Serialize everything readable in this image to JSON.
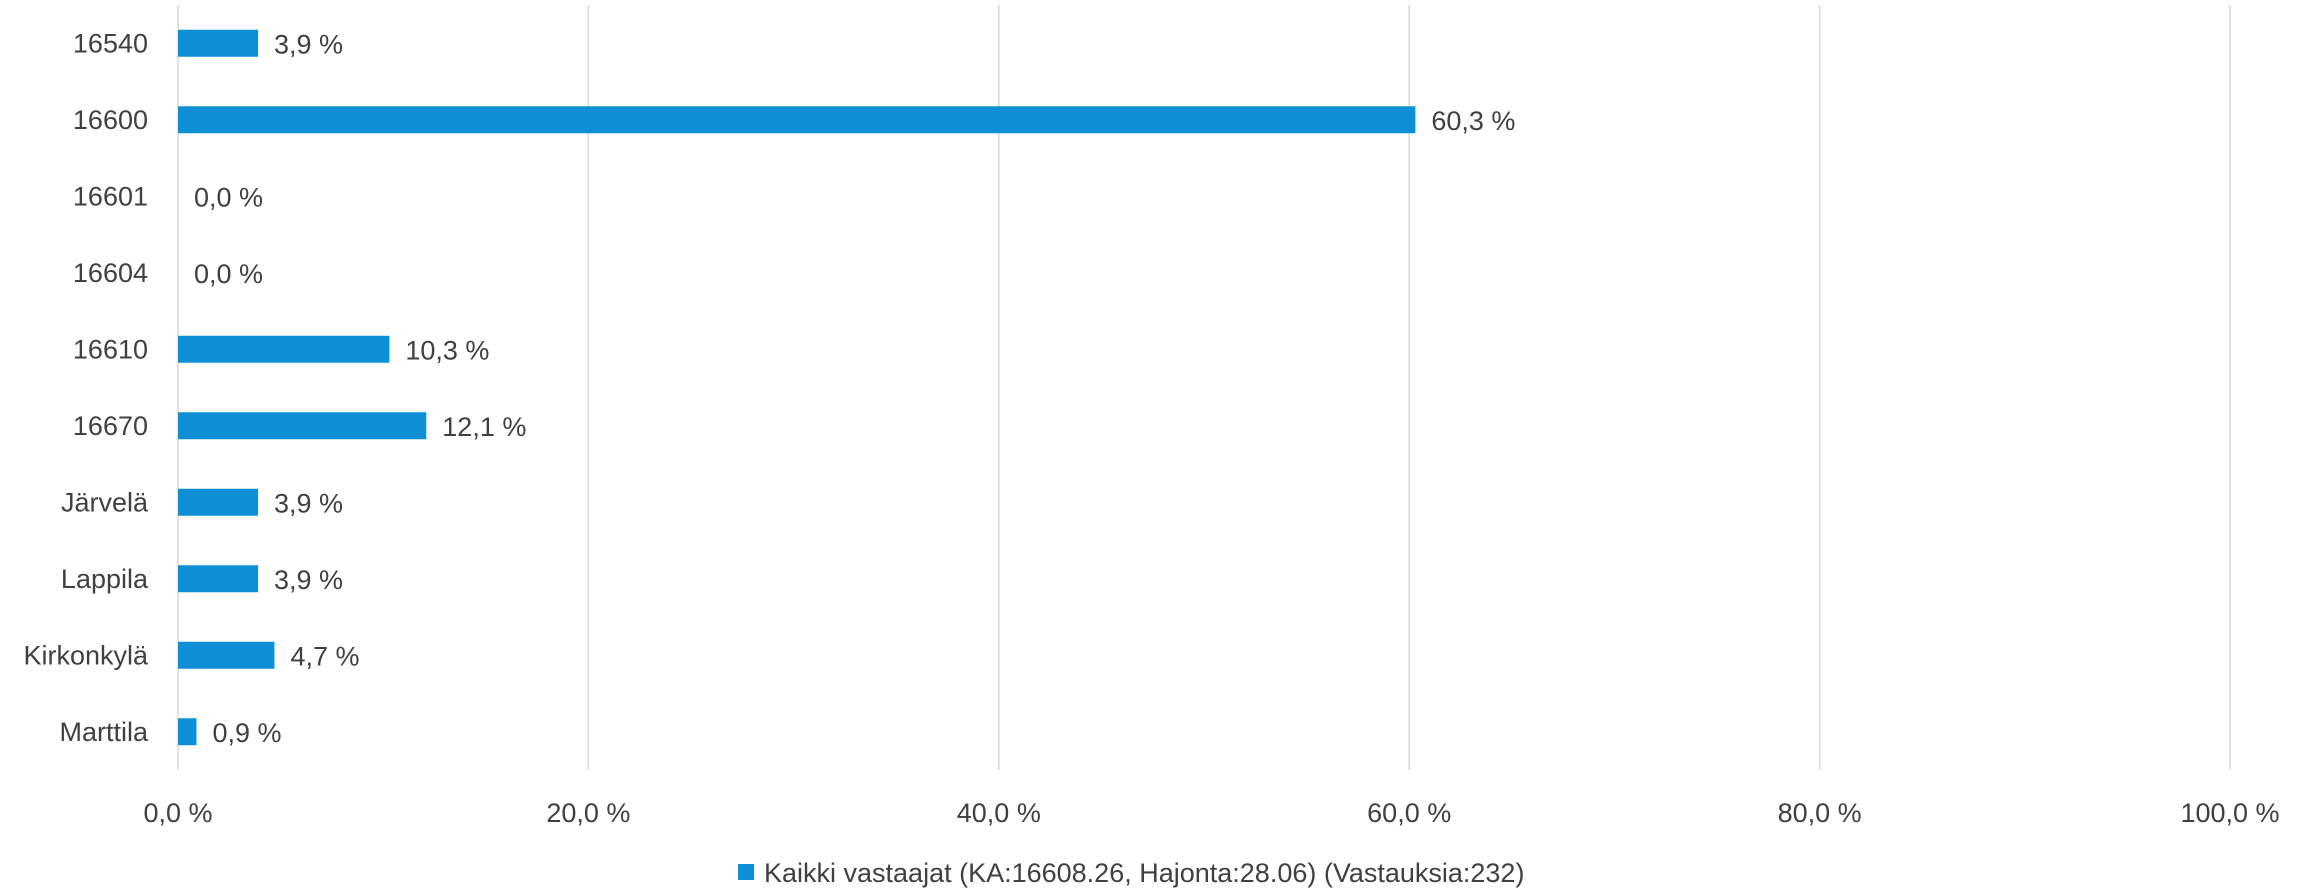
{
  "chart_data": {
    "type": "bar",
    "orientation": "horizontal",
    "categories": [
      "16540",
      "16600",
      "16601",
      "16604",
      "16610",
      "16670",
      "Järvelä",
      "Lappila",
      "Kirkonkylä",
      "Marttila"
    ],
    "series": [
      {
        "name": "Kaikki vastaajat (KA:16608.26, Hajonta:28.06) (Vastauksia:232)",
        "values": [
          3.9,
          60.3,
          0.0,
          0.0,
          10.3,
          12.1,
          3.9,
          3.9,
          4.7,
          0.9
        ],
        "labels": [
          "3,9 %",
          "60,3 %",
          "0,0 %",
          "0,0 %",
          "10,3 %",
          "12,1 %",
          "3,9 %",
          "3,9 %",
          "4,7 %",
          "0,9 %"
        ]
      }
    ],
    "xlim": [
      0,
      100
    ],
    "xticks": [
      0,
      20,
      40,
      60,
      80,
      100
    ],
    "xtick_labels": [
      "0,0 %",
      "20,0 %",
      "40,0 %",
      "60,0 %",
      "80,0 %",
      "100,0 %"
    ],
    "grid": "vertical",
    "legend_position": "bottom",
    "colors": {
      "bar": "#0F8FD6",
      "grid": "#D9D9D9",
      "text": "#404040"
    }
  }
}
